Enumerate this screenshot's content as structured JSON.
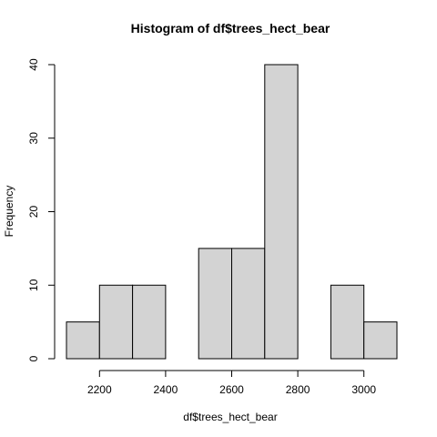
{
  "chart_data": {
    "type": "bar",
    "title": "Histogram of df$trees_hect_bear",
    "xlabel": "df$trees_hect_bear",
    "ylabel": "Frequency",
    "bins": [
      {
        "start": 2100,
        "end": 2200,
        "count": 5
      },
      {
        "start": 2200,
        "end": 2300,
        "count": 10
      },
      {
        "start": 2300,
        "end": 2400,
        "count": 10
      },
      {
        "start": 2400,
        "end": 2500,
        "count": 0
      },
      {
        "start": 2500,
        "end": 2600,
        "count": 15
      },
      {
        "start": 2600,
        "end": 2700,
        "count": 15
      },
      {
        "start": 2700,
        "end": 2800,
        "count": 40
      },
      {
        "start": 2800,
        "end": 2900,
        "count": 0
      },
      {
        "start": 2900,
        "end": 3000,
        "count": 10
      },
      {
        "start": 3000,
        "end": 3100,
        "count": 5
      }
    ],
    "x_ticks": [
      "2200",
      "2400",
      "2600",
      "2800",
      "3000"
    ],
    "y_ticks": [
      "0",
      "10",
      "20",
      "30",
      "40"
    ],
    "xlim": [
      2100,
      3100
    ],
    "ylim": [
      0,
      40
    ],
    "grid": false,
    "bar_color": "#d3d3d3",
    "edge_color": "#000000"
  }
}
